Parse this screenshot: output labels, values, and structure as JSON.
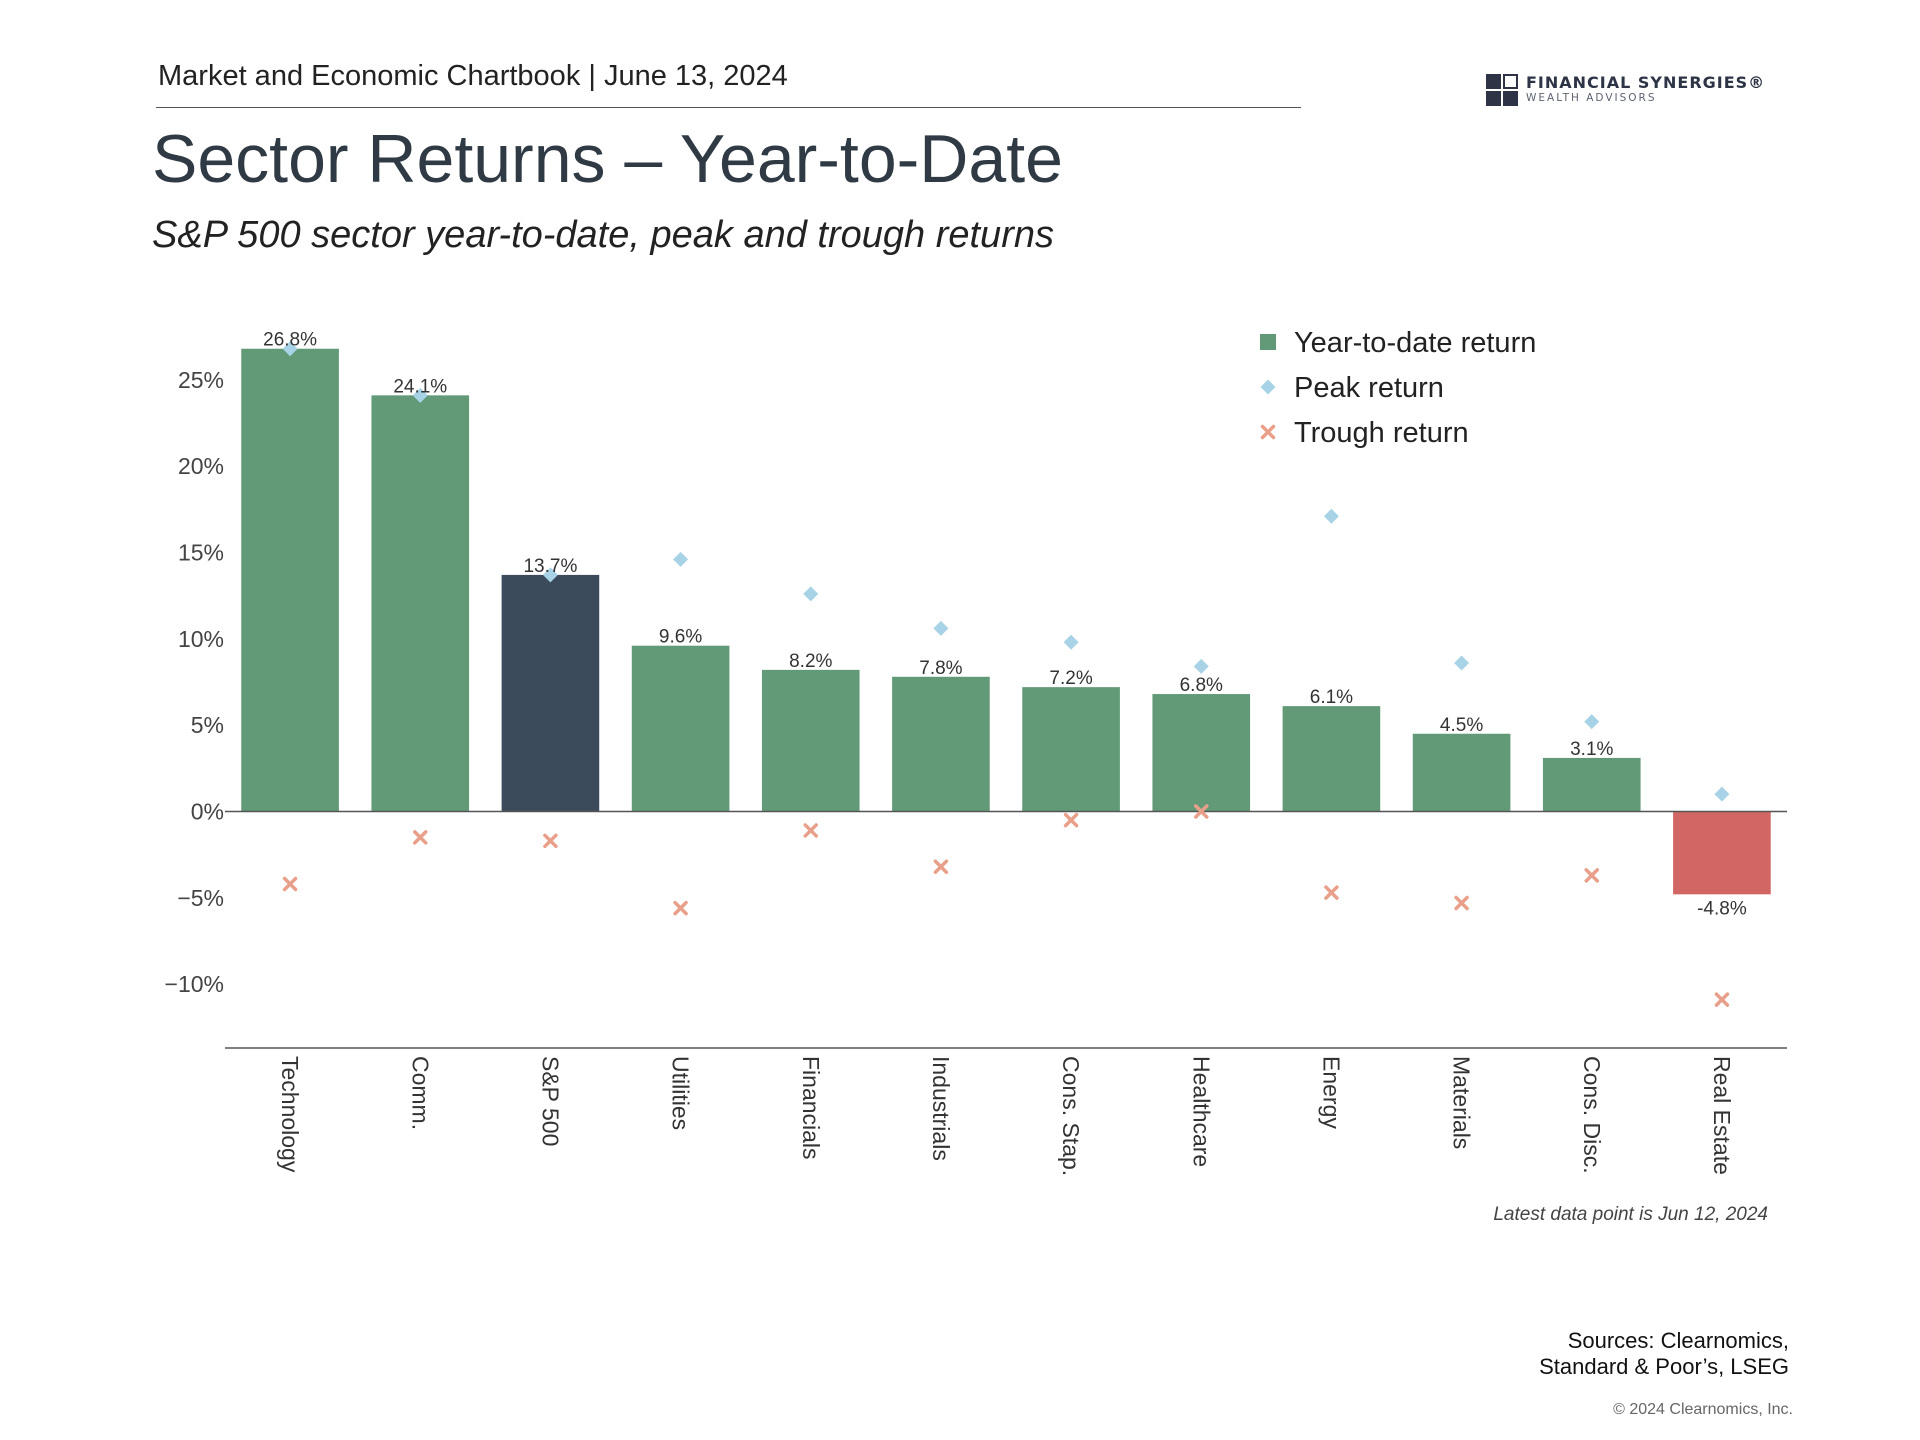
{
  "header": {
    "chartbook": "Market and Economic Chartbook | June 13, 2024",
    "logo_line1": "FINANCIAL SYNERGIES®",
    "logo_line2": "WEALTH ADVISORS"
  },
  "colors": {
    "sector_bar": "#629a78",
    "index_bar": "#3c4b5c",
    "negative_bar": "#d26664",
    "peak_marker": "#a8d3e6",
    "trough_marker": "#e9a08a"
  },
  "chart_data": {
    "type": "bar",
    "title": "Sector Returns – Year-to-Date",
    "subtitle": "S&P 500 sector year-to-date, peak and trough returns",
    "categories": [
      "Technology",
      "Comm.",
      "S&P 500",
      "Utilities",
      "Financials",
      "Industrials",
      "Cons. Stap.",
      "Healthcare",
      "Energy",
      "Materials",
      "Cons. Disc.",
      "Real Estate"
    ],
    "series": [
      {
        "name": "Year-to-date return",
        "kind": "bar",
        "values": [
          26.8,
          24.1,
          13.7,
          9.6,
          8.2,
          7.8,
          7.2,
          6.8,
          6.1,
          4.5,
          3.1,
          -4.8
        ]
      },
      {
        "name": "Peak return",
        "kind": "marker",
        "values": [
          26.8,
          24.1,
          13.7,
          14.6,
          12.6,
          10.6,
          9.8,
          8.4,
          17.1,
          8.6,
          5.2,
          1.0
        ]
      },
      {
        "name": "Trough return",
        "kind": "marker",
        "values": [
          -4.2,
          -1.5,
          -1.7,
          -5.6,
          -1.1,
          -3.2,
          -0.5,
          0.0,
          -4.7,
          -5.3,
          -3.7,
          -10.9
        ]
      }
    ],
    "data_labels": [
      "26.8%",
      "24.1%",
      "13.7%",
      "9.6%",
      "8.2%",
      "7.8%",
      "7.2%",
      "6.8%",
      "6.1%",
      "4.5%",
      "3.1%",
      "-4.8%"
    ],
    "y_ticks": [
      25,
      20,
      15,
      10,
      5,
      0,
      -5,
      -10
    ],
    "y_tick_labels": [
      "25%",
      "20%",
      "15%",
      "10%",
      "5%",
      "0%",
      "−5%",
      "−10%"
    ],
    "ylim": [
      -13.7,
      28
    ],
    "xlabel": "",
    "ylabel": "",
    "grid": false,
    "legend_position": "top-right",
    "highlight_category": "S&P 500"
  },
  "footer": {
    "note": "Latest data point is Jun 12, 2024",
    "sources": "Sources: Clearnomics, Standard & Poor’s, LSEG",
    "copyright": "© 2024 Clearnomics, Inc."
  }
}
